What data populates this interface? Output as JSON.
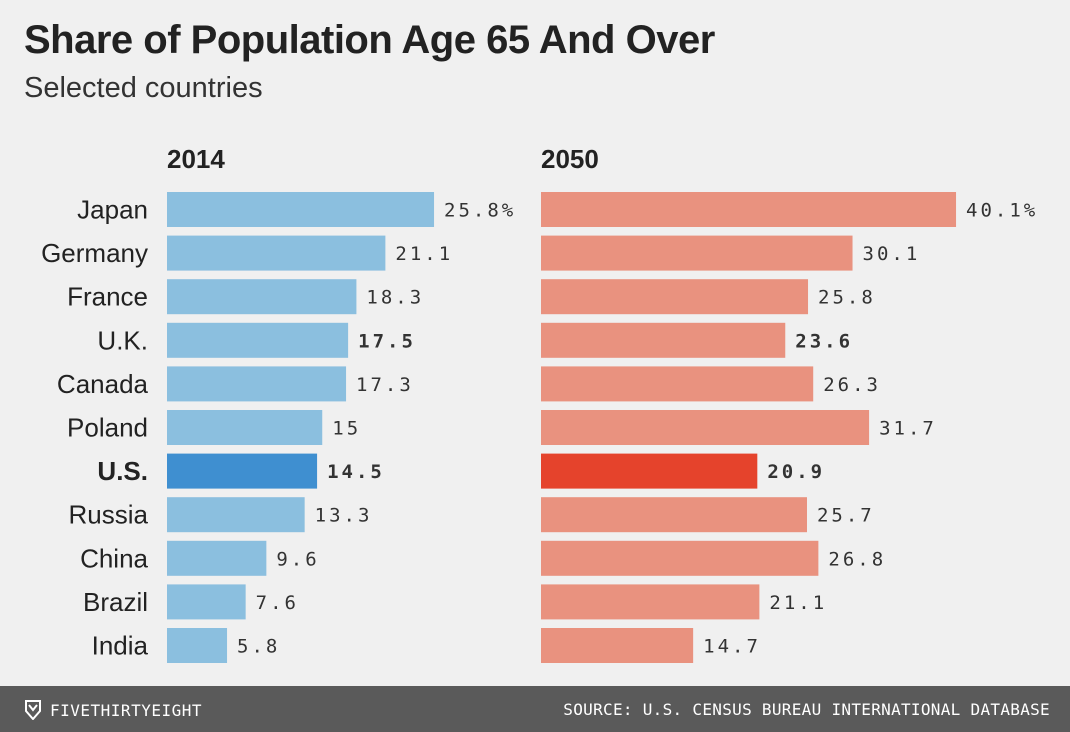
{
  "title": "Share of Population Age 65 And Over",
  "subtitle": "Selected countries",
  "footer": {
    "brand": "FIVETHIRTYEIGHT",
    "source": "SOURCE: U.S. CENSUS BUREAU INTERNATIONAL DATABASE",
    "logo_icon": "fivethirtyeight-logo-icon"
  },
  "colors": {
    "left_bar": "#8bbfdf",
    "left_highlight": "#3f8fd0",
    "right_bar": "#e9927f",
    "right_highlight": "#e5432c"
  },
  "chart_data": {
    "type": "bar",
    "orientation": "horizontal",
    "categories": [
      "Japan",
      "Germany",
      "France",
      "U.K.",
      "Canada",
      "Poland",
      "U.S.",
      "Russia",
      "China",
      "Brazil",
      "India"
    ],
    "bold_categories": [
      "U.S."
    ],
    "bold_values_for": [
      "U.K.",
      "U.S."
    ],
    "highlight": "U.S.",
    "series": [
      {
        "name": "2014",
        "values": [
          25.8,
          21.1,
          18.3,
          17.5,
          17.3,
          15,
          14.5,
          13.3,
          9.6,
          7.6,
          5.8
        ],
        "labels": [
          "25.8%",
          "21.1",
          "18.3",
          "17.5",
          "17.3",
          "15",
          "14.5",
          "13.3",
          "9.6",
          "7.6",
          "5.8"
        ]
      },
      {
        "name": "2050",
        "values": [
          40.1,
          30.1,
          25.8,
          23.6,
          26.3,
          31.7,
          20.9,
          25.7,
          26.8,
          21.1,
          14.7
        ],
        "labels": [
          "40.1%",
          "30.1",
          "25.8",
          "23.6",
          "26.3",
          "31.7",
          "20.9",
          "25.7",
          "26.8",
          "21.1",
          "14.7"
        ]
      }
    ],
    "unit": "%",
    "grid": false,
    "legend": "none"
  }
}
